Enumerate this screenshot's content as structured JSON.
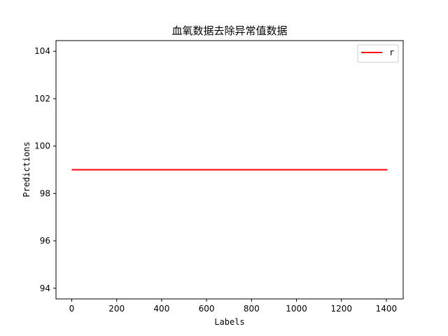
{
  "chart_data": {
    "type": "line",
    "title": "血氧数据去除异常值数据",
    "xlabel": "Labels",
    "ylabel": "Predictions",
    "xlim": [
      -70,
      1475
    ],
    "ylim": [
      93.55,
      104.45
    ],
    "xticks": [
      0,
      200,
      400,
      600,
      800,
      1000,
      1200,
      1400
    ],
    "yticks": [
      94,
      96,
      98,
      100,
      102,
      104
    ],
    "xtick_labels": [
      "0",
      "200",
      "400",
      "600",
      "800",
      "1000",
      "1200",
      "1400"
    ],
    "ytick_labels": [
      "94",
      "96",
      "98",
      "100",
      "102",
      "104"
    ],
    "grid": false,
    "legend_position": "top-right",
    "series": [
      {
        "name": "r",
        "color": "#ff0000",
        "x": [
          0,
          1405
        ],
        "y": [
          99,
          99
        ]
      }
    ]
  }
}
